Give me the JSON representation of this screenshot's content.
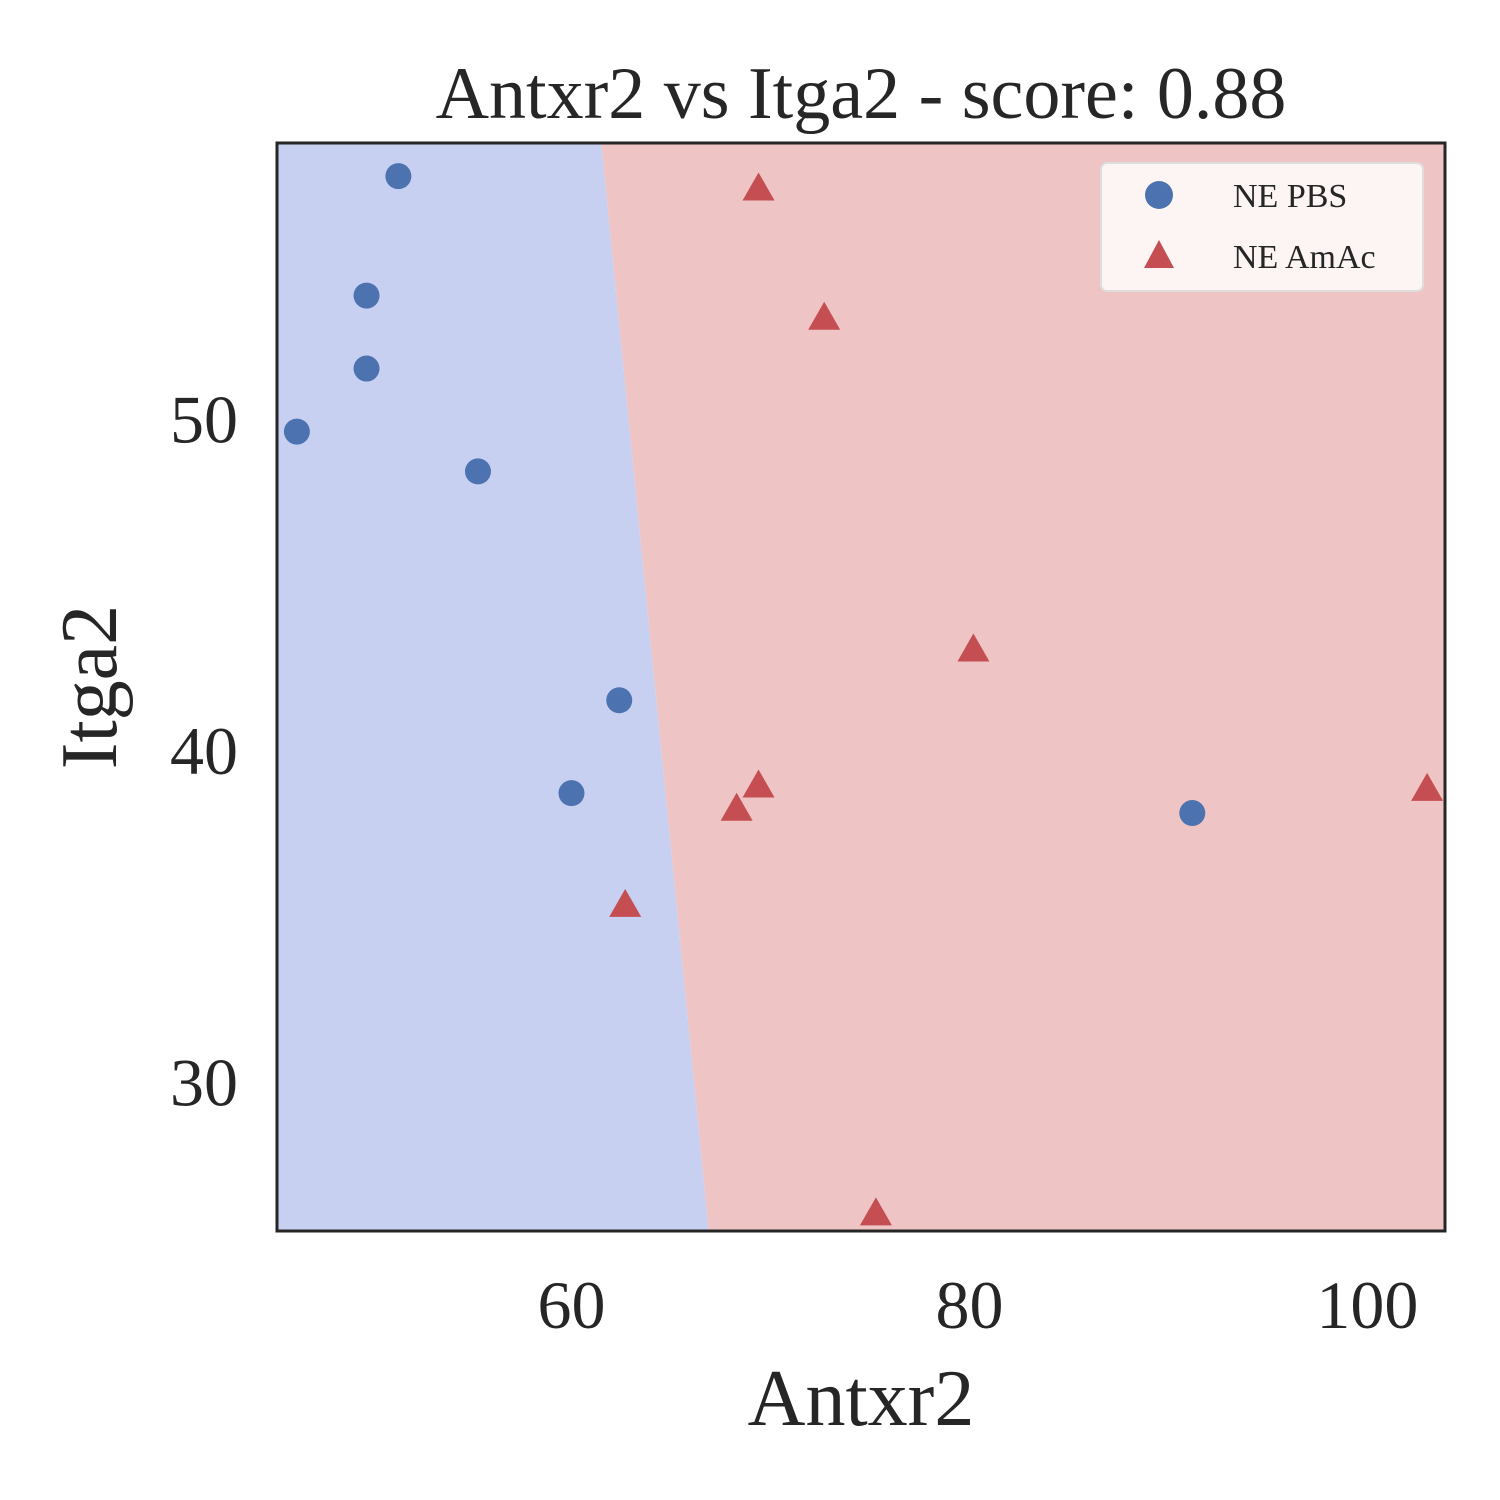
{
  "chart_data": {
    "type": "scatter",
    "title": "Antxr2 vs Itga2 - score: 0.88",
    "xlabel": "Antxr2",
    "ylabel": "Itga2",
    "xlim": [
      45.2,
      103.9
    ],
    "ylim": [
      25.5,
      58.3
    ],
    "xticks": [
      60,
      80,
      100
    ],
    "yticks": [
      30,
      40,
      50
    ],
    "grid": false,
    "legend_position": "top-right",
    "decision_boundary": {
      "top": {
        "x": 61.5,
        "y": 58.3
      },
      "bottom": {
        "x": 66.9,
        "y": 25.5
      },
      "left_class": "NE PBS",
      "right_class": "NE AmAc"
    },
    "colors": {
      "region_left": "#c8d0f2",
      "region_right": "#eec4c4",
      "pbs_marker": "#4c72b0",
      "amac_marker": "#c44e52",
      "frame": "#262626"
    },
    "series": [
      {
        "name": "NE PBS",
        "marker": "circle",
        "color": "#4c72b0",
        "points": [
          [
            51.3,
            57.3
          ],
          [
            49.7,
            53.7
          ],
          [
            49.7,
            51.5
          ],
          [
            46.2,
            49.6
          ],
          [
            55.3,
            48.4
          ],
          [
            62.4,
            41.5
          ],
          [
            60.0,
            38.7
          ],
          [
            91.2,
            38.1
          ]
        ]
      },
      {
        "name": "NE AmAc",
        "marker": "triangle",
        "color": "#c44e52",
        "points": [
          [
            69.4,
            56.9
          ],
          [
            72.7,
            53.0
          ],
          [
            80.2,
            43.0
          ],
          [
            69.4,
            38.9
          ],
          [
            68.3,
            38.2
          ],
          [
            62.7,
            35.3
          ],
          [
            75.3,
            26.0
          ],
          [
            103.0,
            38.8
          ]
        ]
      }
    ]
  }
}
